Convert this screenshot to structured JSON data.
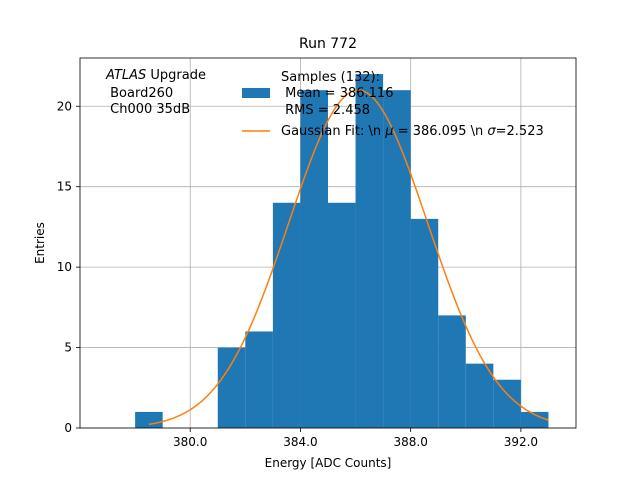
{
  "chart_data": {
    "type": "bar",
    "title": "Run 772",
    "xlabel": "Energy [ADC Counts]",
    "ylabel": "Entries",
    "xlim": [
      376.0,
      394.0
    ],
    "ylim": [
      0,
      23
    ],
    "xticks": [
      380.0,
      384.0,
      388.0,
      392.0
    ],
    "xtick_labels": [
      "380.0",
      "384.0",
      "388.0",
      "392.0"
    ],
    "yticks": [
      0,
      5,
      10,
      15,
      20
    ],
    "ytick_labels": [
      "0",
      "5",
      "10",
      "15",
      "20"
    ],
    "grid": true,
    "bin_width": 1.0,
    "bins": [
      {
        "left": 378.0,
        "count": 1
      },
      {
        "left": 379.0,
        "count": 0
      },
      {
        "left": 380.0,
        "count": 0
      },
      {
        "left": 381.0,
        "count": 5
      },
      {
        "left": 382.0,
        "count": 6
      },
      {
        "left": 383.0,
        "count": 14
      },
      {
        "left": 384.0,
        "count": 21
      },
      {
        "left": 385.0,
        "count": 14
      },
      {
        "left": 386.0,
        "count": 22
      },
      {
        "left": 387.0,
        "count": 21
      },
      {
        "left": 388.0,
        "count": 13
      },
      {
        "left": 389.0,
        "count": 7
      },
      {
        "left": 390.0,
        "count": 4
      },
      {
        "left": 391.0,
        "count": 3
      },
      {
        "left": 392.0,
        "count": 1
      }
    ],
    "fit": {
      "mu": 386.095,
      "sigma": 2.523,
      "amplitude": 21.0,
      "x_range": [
        378.5,
        393.0
      ]
    },
    "colors": {
      "histogram": "#1f77b4",
      "fit": "#ff7f0e",
      "grid": "#b0b0b0"
    },
    "annotation": {
      "atlas": "ATLAS",
      "upgrade": " Upgrade",
      "board": " Board260",
      "channel": " Ch000 35dB"
    },
    "legend": {
      "placement": "top-right",
      "hist_lines": [
        "Samples (132):",
        " Mean = 386.116",
        " RMS = 2.458"
      ],
      "fit_label_prefix": "Gaussian Fit: \\n ",
      "fit_mu_symbol": "μ",
      "fit_mu_text": " = 386.095 \\n ",
      "fit_sigma_symbol": "σ",
      "fit_sigma_text": "=2.523"
    }
  }
}
